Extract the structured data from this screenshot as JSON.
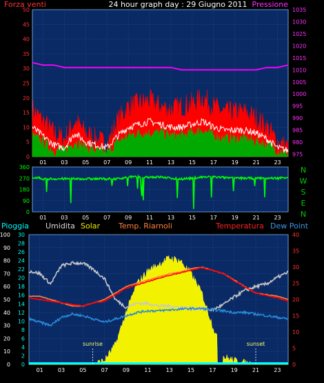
{
  "header": {
    "title": "24 hour graph day : 29 Giugno 2011",
    "left_label": "Forza venti",
    "right_label": "Pressione"
  },
  "x_ticks": [
    "01",
    "03",
    "05",
    "07",
    "09",
    "11",
    "13",
    "15",
    "17",
    "19",
    "21",
    "23"
  ],
  "compass": [
    "N",
    "W",
    "S",
    "E",
    "N"
  ],
  "bottom_labels": {
    "pioggia": "Pioggia",
    "umidita": "Umidita",
    "solar": "Solar",
    "riarnoli": "Temp. Riarnoli",
    "temperatura": "Temperatura",
    "dewpoint": "Dew Point"
  },
  "annotations": {
    "sunrise": "sunrise",
    "sunset": "sunset"
  },
  "colors": {
    "panel": "#0a2a66",
    "gust": "#ff0000",
    "wind_white": "#ffffff",
    "wind_green": "#00aa00",
    "pressure": "#ff00ff",
    "direction": "#00ff00",
    "humidity": "#c8c8c8",
    "solar": "#f2f200",
    "temperature": "#ff0000",
    "riarnoli": "#ff8040",
    "dewpoint": "#2a8ad8",
    "rain": "#00ffff"
  },
  "chart_data": [
    {
      "type": "line",
      "name_ref": "wind-pressure",
      "x": [
        0,
        1,
        2,
        3,
        4,
        5,
        6,
        7,
        8,
        9,
        10,
        11,
        12,
        13,
        14,
        15,
        16,
        17,
        18,
        19,
        20,
        21,
        22,
        23,
        24
      ],
      "left_ticks": [
        "0",
        "5",
        "10",
        "15",
        "20",
        "25",
        "30",
        "35",
        "40",
        "45",
        "50"
      ],
      "right_ticks": [
        "975",
        "980",
        "985",
        "990",
        "995",
        "1000",
        "1005",
        "1010",
        "1015",
        "1020",
        "1025",
        "1030",
        "1035"
      ],
      "ylim_left": [
        0,
        50
      ],
      "ylim_right": [
        974,
        1035
      ],
      "series": [
        {
          "name": "Forza venti",
          "values": [
            16,
            12,
            8,
            6,
            12,
            8,
            6,
            4,
            12,
            17,
            18,
            19,
            17,
            16,
            17,
            18,
            20,
            17,
            15,
            15,
            15,
            13,
            10,
            5,
            3
          ]
        },
        {
          "values": [
            10,
            7,
            4,
            3,
            8,
            5,
            4,
            3,
            7,
            10,
            11,
            12,
            11,
            10,
            10,
            11,
            12,
            10,
            9,
            9,
            9,
            8,
            6,
            3,
            2
          ]
        },
        {
          "values": [
            7,
            5,
            2,
            2,
            5,
            3,
            2,
            1,
            5,
            7,
            8,
            8,
            8,
            7,
            7,
            8,
            9,
            7,
            6,
            6,
            6,
            5,
            4,
            2,
            1
          ]
        },
        {
          "name": "Pressione",
          "values": [
            1013,
            1012,
            1012,
            1011,
            1011,
            1011,
            1011,
            1011,
            1011,
            1011,
            1011,
            1011,
            1011,
            1011,
            1010,
            1010,
            1010,
            1010,
            1010,
            1010,
            1010,
            1010,
            1011,
            1011,
            1012
          ]
        }
      ]
    },
    {
      "type": "line",
      "name_ref": "wind-direction",
      "x": [
        0,
        1,
        2,
        3,
        4,
        5,
        6,
        7,
        8,
        9,
        10,
        11,
        12,
        13,
        14,
        15,
        16,
        17,
        18,
        19,
        20,
        21,
        22,
        23,
        24
      ],
      "left_ticks": [
        "0",
        "90",
        "180",
        "270",
        "360"
      ],
      "ylim": [
        0,
        360
      ],
      "series": [
        {
          "values": [
            280,
            265,
            265,
            265,
            265,
            265,
            265,
            265,
            265,
            280,
            280,
            280,
            280,
            270,
            265,
            270,
            280,
            280,
            275,
            270,
            270,
            270,
            270,
            270,
            280
          ]
        }
      ]
    },
    {
      "type": "area",
      "name_ref": "weather",
      "x": [
        0,
        1,
        2,
        3,
        4,
        5,
        6,
        7,
        8,
        9,
        10,
        11,
        12,
        13,
        14,
        15,
        16,
        17,
        18,
        19,
        20,
        21,
        22,
        23,
        24
      ],
      "left_ticks": [
        "0",
        "10",
        "20",
        "30",
        "40",
        "50",
        "60",
        "70",
        "80",
        "90",
        "100"
      ],
      "inner_ticks": [
        "0",
        "2",
        "4",
        "6",
        "8",
        "10",
        "12",
        "14",
        "16",
        "18",
        "20",
        "22",
        "24",
        "26",
        "28",
        "30"
      ],
      "right_ticks": [
        "0",
        "5",
        "10",
        "15",
        "20",
        "25",
        "30",
        "35",
        "40"
      ],
      "ylim_left": [
        0,
        100
      ],
      "ylim_right": [
        0,
        40
      ],
      "series": [
        {
          "name": "Umidita",
          "values": [
            72,
            70,
            62,
            76,
            78,
            78,
            73,
            66,
            50,
            44,
            47,
            47,
            45,
            45,
            44,
            43,
            43,
            42,
            46,
            52,
            57,
            60,
            62,
            67,
            71
          ]
        },
        {
          "name": "Solar",
          "values": [
            0,
            0,
            0,
            0,
            0,
            0,
            0,
            3,
            15,
            40,
            62,
            72,
            77,
            82,
            80,
            70,
            55,
            30,
            6,
            3,
            1,
            0,
            0,
            0,
            0
          ]
        },
        {
          "name": "Temp. Riarnoli",
          "values": [
            21,
            21,
            20,
            19,
            18,
            18,
            19,
            20,
            22,
            24,
            25,
            26,
            27,
            28,
            28.5,
            29.5,
            30,
            29,
            28,
            26,
            24,
            22,
            21.5,
            21,
            20
          ]
        },
        {
          "name": "Temperatura",
          "values": [
            20.5,
            20,
            19.5,
            19,
            18.5,
            18,
            19,
            19.5,
            21.5,
            23.5,
            24.5,
            25.5,
            26.5,
            27.5,
            28.2,
            29,
            29.8,
            29,
            28,
            25.8,
            23.8,
            22,
            21.2,
            20.5,
            19.5
          ]
        },
        {
          "name": "Dew Point",
          "values": [
            14,
            13,
            12,
            14.5,
            15.5,
            15,
            14,
            13,
            14,
            15,
            16,
            16.5,
            16.5,
            16.8,
            17,
            17.2,
            17.2,
            16.8,
            16.5,
            16,
            16,
            15.5,
            15,
            14.5,
            14
          ]
        },
        {
          "name": "Pioggia",
          "values": [
            0,
            0,
            0,
            0,
            0,
            0,
            0,
            0,
            0,
            0,
            0,
            0,
            0,
            0,
            0,
            0,
            0,
            0,
            0,
            0,
            0,
            0,
            0,
            0,
            0
          ]
        }
      ]
    }
  ]
}
